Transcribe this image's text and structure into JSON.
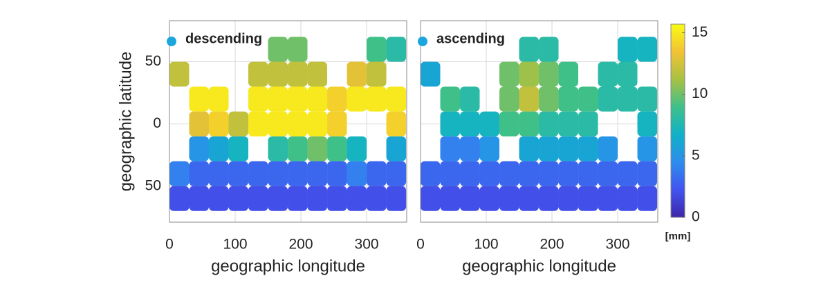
{
  "chart_data": [
    {
      "type": "heatmap",
      "legend": "descending",
      "legend_color": "#1ba6de",
      "xlabel": "geographic longitude",
      "ylabel": "geographic latitude",
      "x": [
        15,
        45,
        75,
        105,
        135,
        165,
        195,
        225,
        255,
        285,
        315,
        345
      ],
      "y": [
        60,
        40,
        20,
        0,
        -20,
        -40,
        -60
      ],
      "values": [
        [
          null,
          null,
          null,
          null,
          null,
          10,
          10,
          null,
          null,
          null,
          9,
          8
        ],
        [
          12,
          null,
          null,
          null,
          12,
          12,
          12,
          12,
          null,
          13,
          12,
          null
        ],
        [
          null,
          15,
          15,
          null,
          15,
          15,
          15,
          15,
          14,
          15,
          15,
          15
        ],
        [
          null,
          13,
          14,
          12,
          15,
          15,
          15,
          15,
          14,
          null,
          null,
          14
        ],
        [
          null,
          5,
          6,
          7,
          null,
          8,
          9,
          10,
          9,
          7,
          null,
          6
        ],
        [
          4,
          3,
          3,
          3,
          3,
          3,
          3,
          3,
          3,
          4,
          3,
          3
        ],
        [
          2,
          2,
          2,
          2,
          2,
          2,
          2,
          2,
          2,
          2,
          2,
          2
        ]
      ],
      "xlim": [
        0,
        361
      ],
      "ylim": [
        -79,
        83
      ],
      "xticks": [
        0,
        100,
        200,
        300
      ],
      "yticks": [
        {
          "value": -50,
          "label": "50"
        },
        0,
        50
      ],
      "grid": true
    },
    {
      "type": "heatmap",
      "legend": "ascending",
      "legend_color": "#1ba6de",
      "xlabel": "geographic longitude",
      "x": [
        15,
        45,
        75,
        105,
        135,
        165,
        195,
        225,
        255,
        285,
        315,
        345
      ],
      "y": [
        60,
        40,
        20,
        0,
        -20,
        -40,
        -60
      ],
      "values": [
        [
          null,
          null,
          null,
          null,
          null,
          8,
          8,
          null,
          null,
          null,
          7,
          7
        ],
        [
          6,
          null,
          null,
          null,
          10,
          11,
          10,
          9,
          null,
          8,
          8,
          null
        ],
        [
          null,
          9,
          8,
          null,
          10,
          12,
          10,
          9,
          9,
          8,
          8,
          8
        ],
        [
          null,
          7,
          7,
          7,
          9,
          9,
          8,
          8,
          8,
          null,
          null,
          7
        ],
        [
          null,
          4,
          4,
          5,
          null,
          6,
          6,
          6,
          6,
          5,
          null,
          5
        ],
        [
          3,
          3,
          3,
          3,
          3,
          3,
          3,
          3,
          3,
          3,
          3,
          3
        ],
        [
          2,
          2,
          2,
          2,
          2,
          2,
          2,
          2,
          2,
          2,
          2,
          2
        ]
      ],
      "xlim": [
        0,
        361
      ],
      "ylim": [
        -79,
        83
      ],
      "xticks": [
        0,
        100,
        200,
        300
      ],
      "yticks": [
        -50,
        0,
        50
      ],
      "grid": true,
      "colorbar": {
        "label": "[mm]",
        "clim": [
          0,
          15.7
        ],
        "ticks": [
          0,
          5,
          10,
          15
        ],
        "colormap": [
          "#3e26a8",
          "#4254f0",
          "#2d8ded",
          "#10b1c8",
          "#3fc08a",
          "#a8c143",
          "#f2c235",
          "#f9fb14"
        ]
      }
    }
  ]
}
